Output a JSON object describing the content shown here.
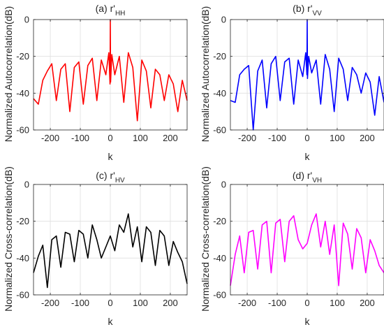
{
  "chart_data": [
    {
      "type": "line",
      "title_prefix": "(a) r'",
      "title_sub": "HH",
      "xlabel": "k",
      "ylabel": "Normalized Autocorrelation(dB)",
      "xlim": [
        -256,
        256
      ],
      "ylim": [
        -60,
        0
      ],
      "xticks": [
        "-200",
        "-100",
        "0",
        "100",
        "200"
      ],
      "yticks": [
        "0",
        "-20",
        "-40",
        "-60"
      ],
      "grid": true,
      "color": "#ff0000",
      "x": [
        -256,
        -240,
        -225,
        -210,
        -195,
        -180,
        -165,
        -150,
        -135,
        -120,
        -105,
        -90,
        -75,
        -60,
        -45,
        -30,
        -15,
        -5,
        -1,
        0,
        1,
        5,
        15,
        30,
        45,
        60,
        75,
        90,
        105,
        120,
        135,
        150,
        165,
        180,
        195,
        210,
        225,
        240,
        256
      ],
      "y": [
        -43,
        -46,
        -33,
        -28,
        -24,
        -44,
        -27,
        -24,
        -50,
        -26,
        -23,
        -46,
        -25,
        -21,
        -44,
        -22,
        -30,
        -18,
        -35,
        0,
        -34,
        -19,
        -30,
        -20,
        -45,
        -18,
        -26,
        -55,
        -22,
        -28,
        -48,
        -27,
        -30,
        -44,
        -30,
        -35,
        -50,
        -33,
        -44
      ]
    },
    {
      "type": "line",
      "title_prefix": "(b) r'",
      "title_sub": "VV",
      "xlabel": "k",
      "ylabel": "Normalized Autocorrelation(dB)",
      "xlim": [
        -256,
        256
      ],
      "ylim": [
        -60,
        0
      ],
      "xticks": [
        "-200",
        "-100",
        "0",
        "100",
        "200"
      ],
      "yticks": [
        "0",
        "-20",
        "-40",
        "-60"
      ],
      "grid": true,
      "color": "#0000ff",
      "x": [
        -256,
        -240,
        -225,
        -210,
        -195,
        -180,
        -165,
        -150,
        -135,
        -120,
        -105,
        -90,
        -75,
        -60,
        -45,
        -30,
        -15,
        -5,
        -1,
        0,
        1,
        5,
        15,
        30,
        45,
        60,
        75,
        90,
        105,
        120,
        135,
        150,
        165,
        180,
        195,
        210,
        225,
        240,
        256
      ],
      "y": [
        -44,
        -45,
        -30,
        -27,
        -25,
        -60,
        -28,
        -22,
        -48,
        -24,
        -20,
        -44,
        -23,
        -21,
        -46,
        -22,
        -31,
        -18,
        -30,
        0,
        -32,
        -20,
        -29,
        -22,
        -46,
        -19,
        -27,
        -50,
        -21,
        -27,
        -44,
        -26,
        -30,
        -40,
        -29,
        -34,
        -52,
        -31,
        -45
      ]
    },
    {
      "type": "line",
      "title_prefix": "(c) r'",
      "title_sub": "HV",
      "xlabel": "k",
      "ylabel": "Normalized Cross-correlation(dB)",
      "xlim": [
        -256,
        256
      ],
      "ylim": [
        -60,
        0
      ],
      "xticks": [
        "-200",
        "-100",
        "0",
        "100",
        "200"
      ],
      "yticks": [
        "0",
        "-20",
        "-40",
        "-60"
      ],
      "grid": true,
      "color": "#000000",
      "x": [
        -256,
        -240,
        -225,
        -210,
        -195,
        -180,
        -165,
        -150,
        -135,
        -120,
        -105,
        -90,
        -75,
        -60,
        -45,
        -30,
        -15,
        0,
        15,
        30,
        45,
        60,
        75,
        90,
        105,
        120,
        135,
        150,
        165,
        180,
        195,
        210,
        225,
        240,
        256
      ],
      "y": [
        -48,
        -39,
        -33,
        -56,
        -30,
        -28,
        -45,
        -26,
        -27,
        -42,
        -25,
        -27,
        -40,
        -22,
        -30,
        -40,
        -34,
        -28,
        -36,
        -22,
        -26,
        -16,
        -34,
        -23,
        -42,
        -23,
        -26,
        -44,
        -25,
        -28,
        -44,
        -31,
        -37,
        -42,
        -54
      ]
    },
    {
      "type": "line",
      "title_prefix": "(d) r'",
      "title_sub": "VH",
      "xlabel": "k",
      "ylabel": "Normalized Cross-correlation(dB)",
      "xlim": [
        -256,
        256
      ],
      "ylim": [
        -60,
        0
      ],
      "xticks": [
        "-200",
        "-100",
        "0",
        "100",
        "200"
      ],
      "yticks": [
        "0",
        "-20",
        "-40",
        "-60"
      ],
      "grid": true,
      "color": "#ff00ff",
      "x": [
        -256,
        -240,
        -225,
        -210,
        -195,
        -180,
        -165,
        -150,
        -135,
        -120,
        -105,
        -90,
        -75,
        -60,
        -45,
        -30,
        -15,
        0,
        15,
        30,
        45,
        60,
        75,
        90,
        105,
        120,
        135,
        150,
        165,
        180,
        195,
        210,
        225,
        240,
        256
      ],
      "y": [
        -55,
        -38,
        -28,
        -48,
        -26,
        -25,
        -46,
        -22,
        -20,
        -48,
        -21,
        -19,
        -42,
        -20,
        -17,
        -30,
        -35,
        -32,
        -22,
        -16,
        -34,
        -20,
        -38,
        -22,
        -55,
        -21,
        -27,
        -46,
        -24,
        -29,
        -48,
        -30,
        -36,
        -44,
        -48
      ]
    }
  ]
}
